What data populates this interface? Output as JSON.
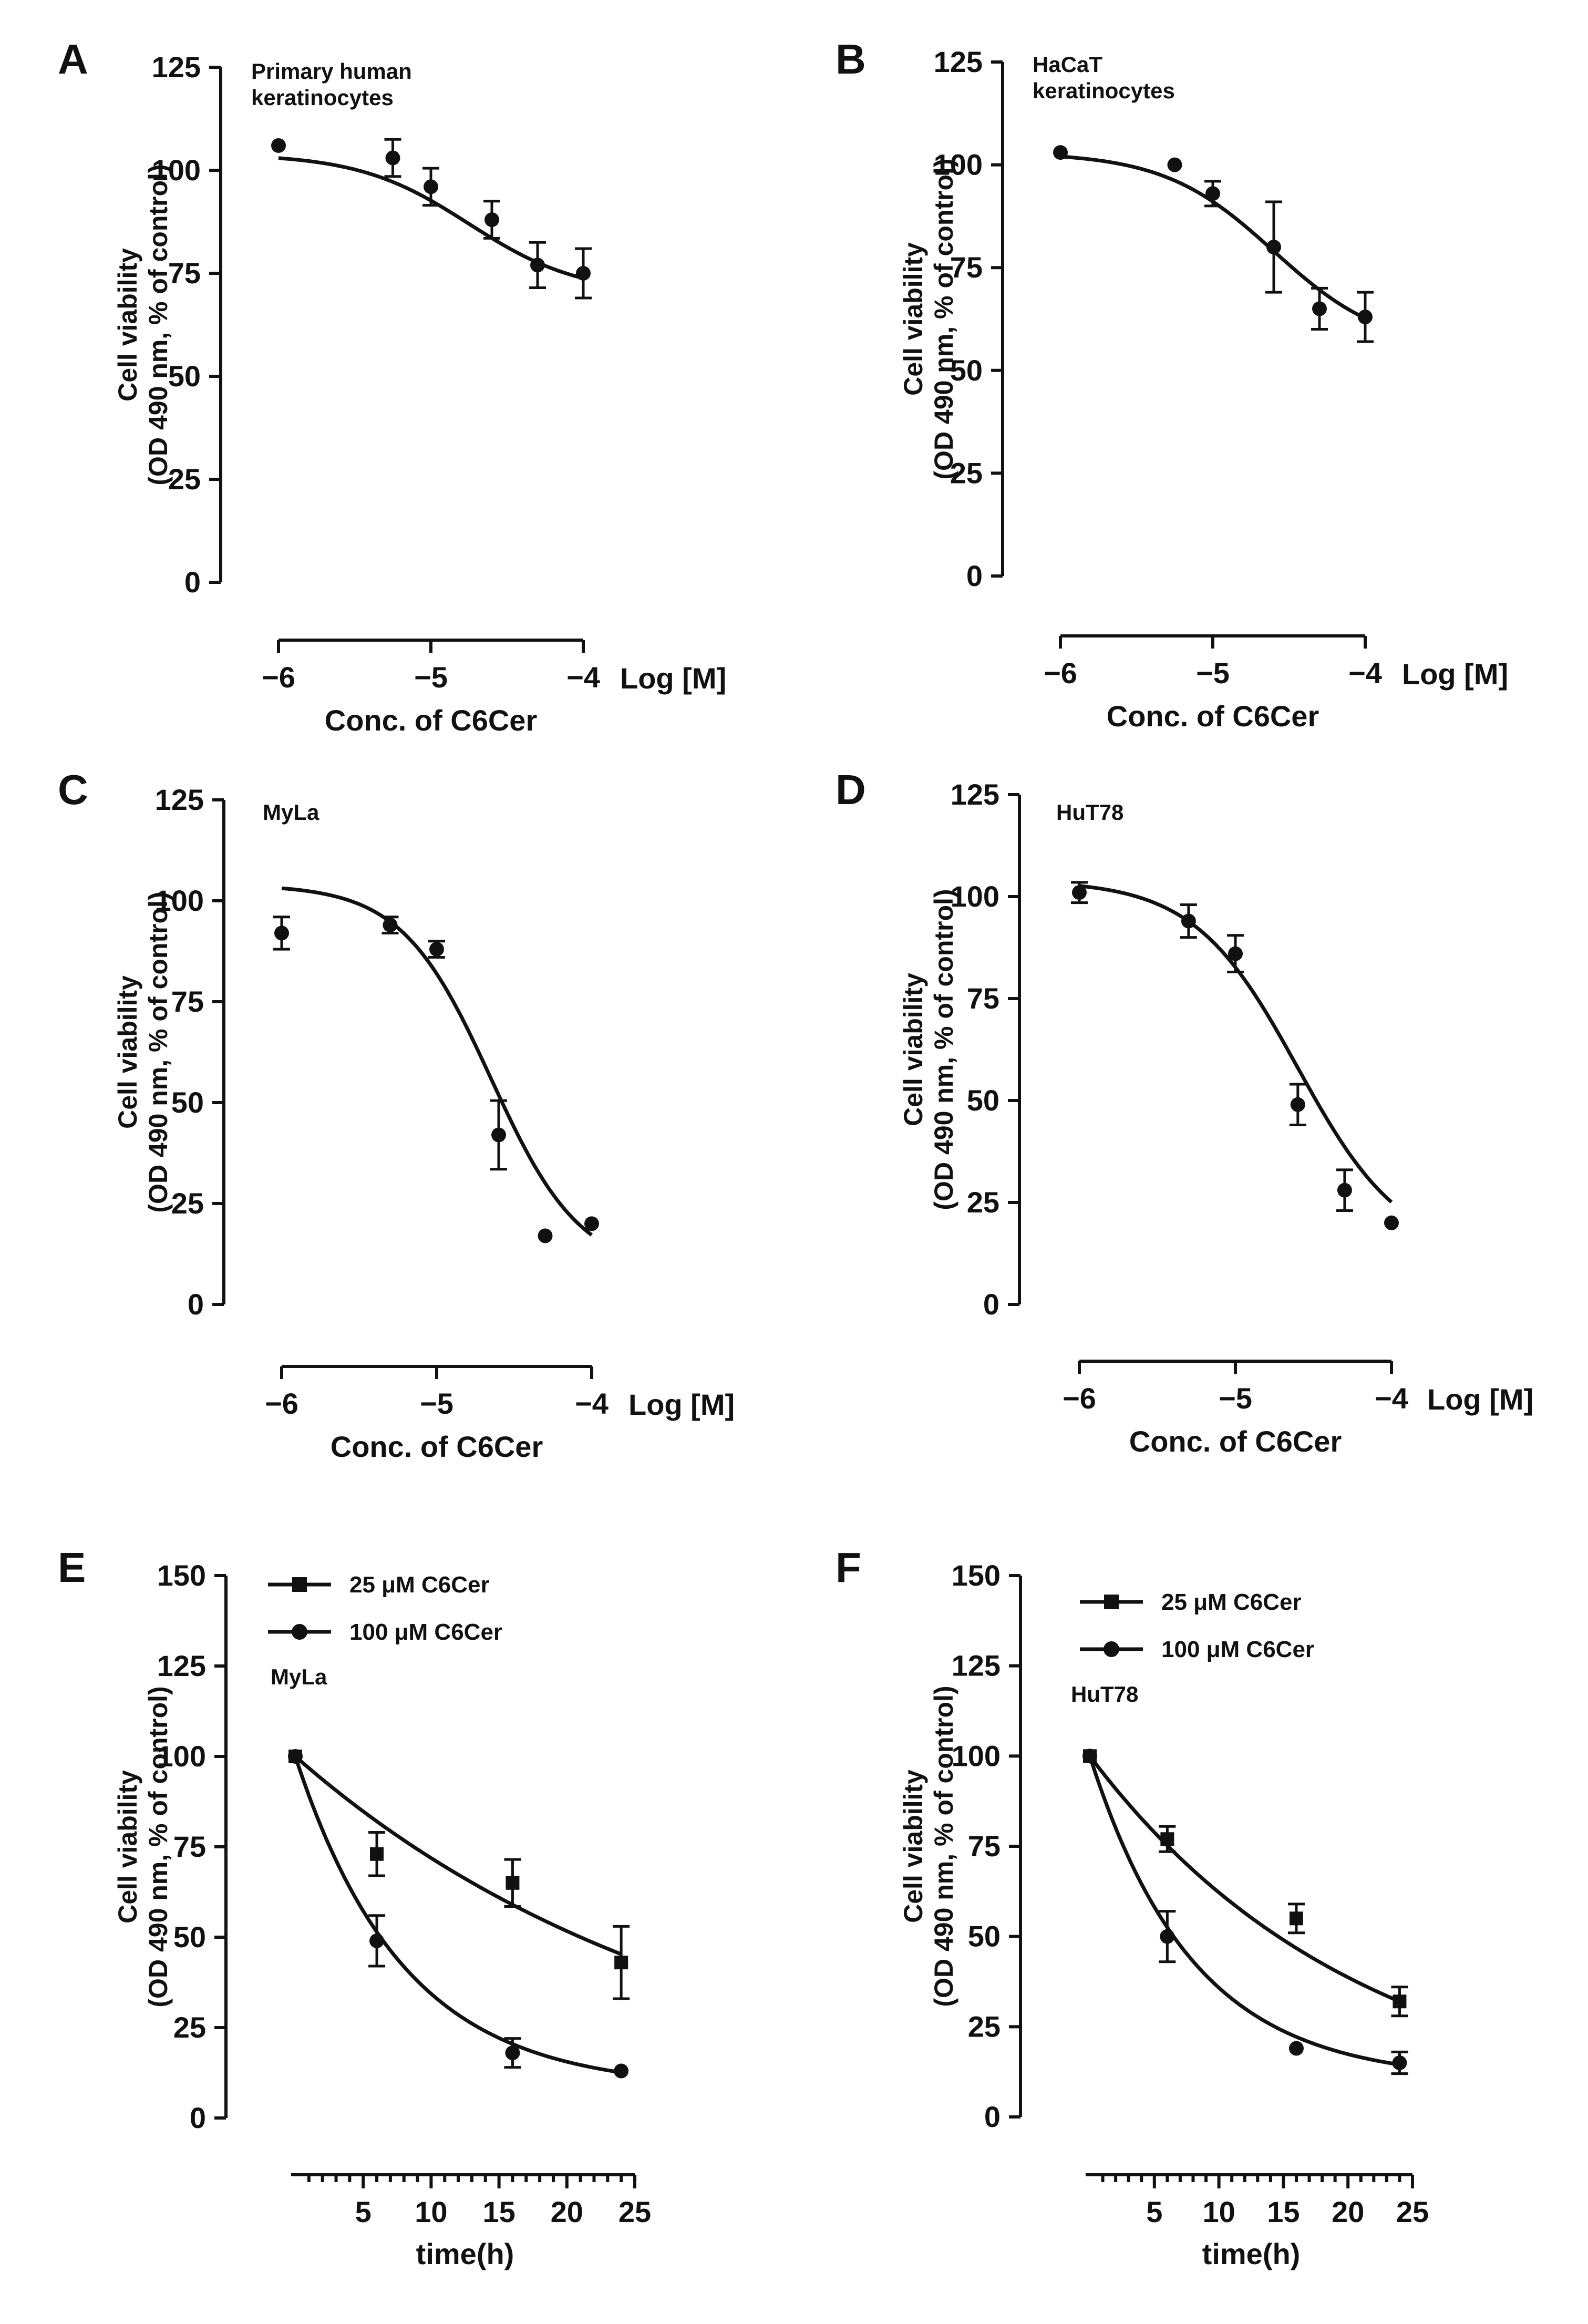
{
  "chart_data": [
    {
      "id": "A",
      "type": "scatter",
      "panel_label": "A",
      "annotation": [
        "Primary human",
        "keratinocytes"
      ],
      "ylabel_lines": [
        "Cell viability",
        "(OD 490 nm, % of control)"
      ],
      "xlabel": "Conc. of C6Cer",
      "x_unit_label": "Log [M]",
      "ylim": [
        0,
        125
      ],
      "yticks": [
        0,
        25,
        50,
        75,
        100,
        125
      ],
      "xlim": [
        -6,
        -4
      ],
      "xticks": [
        -6,
        -5,
        -4
      ],
      "xtick_labels": [
        "−6",
        "−5",
        "−4"
      ],
      "series": [
        {
          "name": "C6Cer",
          "marker": "circle",
          "x": [
            -6,
            -5.25,
            -5,
            -4.6,
            -4.3,
            -4
          ],
          "y": [
            106,
            103,
            96,
            88,
            77,
            75
          ],
          "err": [
            0,
            4.5,
            4.5,
            4.5,
            5.5,
            6
          ],
          "fit": {
            "model": "4pl",
            "top": 104,
            "bottom": 70,
            "log_ic50": -4.75,
            "hill": 1.2,
            "x_range": [
              -6,
              -4
            ]
          }
        }
      ]
    },
    {
      "id": "B",
      "type": "scatter",
      "panel_label": "B",
      "annotation": [
        "HaCaT",
        "keratinocytes"
      ],
      "ylabel_lines": [
        "Cell viability",
        "(OD 490 nm, % of control)"
      ],
      "xlabel": "Conc. of C6Cer",
      "x_unit_label": "Log [M]",
      "ylim": [
        0,
        125
      ],
      "yticks": [
        0,
        25,
        50,
        75,
        100,
        125
      ],
      "xlim": [
        -6,
        -4
      ],
      "xticks": [
        -6,
        -5,
        -4
      ],
      "xtick_labels": [
        "−6",
        "−5",
        "−4"
      ],
      "series": [
        {
          "name": "C6Cer",
          "marker": "circle",
          "x": [
            -6,
            -5.25,
            -5,
            -4.6,
            -4.3,
            -4
          ],
          "y": [
            103,
            100,
            93,
            80,
            65,
            63
          ],
          "err": [
            0,
            0,
            3,
            11,
            5,
            6
          ],
          "fit": {
            "model": "4pl",
            "top": 103,
            "bottom": 55,
            "log_ic50": -4.6,
            "hill": 1.2,
            "x_range": [
              -6,
              -4
            ]
          }
        }
      ]
    },
    {
      "id": "C",
      "type": "scatter",
      "panel_label": "C",
      "annotation": [
        "MyLa"
      ],
      "ylabel_lines": [
        "Cell viability",
        "(OD 490 nm, % of control)"
      ],
      "xlabel": "Conc. of C6Cer",
      "x_unit_label": "Log [M]",
      "ylim": [
        0,
        125
      ],
      "yticks": [
        0,
        25,
        50,
        75,
        100,
        125
      ],
      "xlim": [
        -6,
        -4
      ],
      "xticks": [
        -6,
        -5,
        -4
      ],
      "xtick_labels": [
        "−6",
        "−5",
        "−4"
      ],
      "series": [
        {
          "name": "C6Cer",
          "marker": "circle",
          "x": [
            -6,
            -5.3,
            -5,
            -4.6,
            -4.3,
            -4
          ],
          "y": [
            92,
            94,
            88,
            42,
            17,
            20
          ],
          "err": [
            4,
            2,
            2,
            8.5,
            0,
            0
          ],
          "fit": {
            "model": "4pl",
            "top": 104,
            "bottom": 8,
            "log_ic50": -4.65,
            "hill": 1.5,
            "x_range": [
              -6,
              -4
            ]
          }
        }
      ]
    },
    {
      "id": "D",
      "type": "scatter",
      "panel_label": "D",
      "annotation": [
        "HuT78"
      ],
      "ylabel_lines": [
        "Cell viability",
        "(OD 490 nm, % of control)"
      ],
      "xlabel": "Conc. of C6Cer",
      "x_unit_label": "Log [M]",
      "ylim": [
        0,
        125
      ],
      "yticks": [
        0,
        25,
        50,
        75,
        100,
        125
      ],
      "xlim": [
        -6,
        -4
      ],
      "xticks": [
        -6,
        -5,
        -4
      ],
      "xtick_labels": [
        "−6",
        "−5",
        "−4"
      ],
      "series": [
        {
          "name": "C6Cer",
          "marker": "circle",
          "x": [
            -6,
            -5.3,
            -5,
            -4.6,
            -4.3,
            -4
          ],
          "y": [
            101,
            94,
            86,
            49,
            28,
            20
          ],
          "err": [
            2.5,
            4,
            4.5,
            5,
            5,
            0
          ],
          "fit": {
            "model": "4pl",
            "top": 104,
            "bottom": 12,
            "log_ic50": -4.6,
            "hill": 1.3,
            "x_range": [
              -6,
              -4
            ]
          }
        }
      ]
    },
    {
      "id": "E",
      "type": "line",
      "panel_label": "E",
      "annotation": [
        "MyLa"
      ],
      "ylabel_lines": [
        "Cell viability",
        "(OD 490 nm, % of control)"
      ],
      "xlabel": "time(h)",
      "ylim": [
        0,
        150
      ],
      "yticks": [
        0,
        25,
        50,
        75,
        100,
        125,
        150
      ],
      "xlim": [
        0,
        25
      ],
      "xticks": [
        5,
        10,
        15,
        20,
        25
      ],
      "minor_tick_step": 1,
      "legend": [
        "25 μM C6Cer",
        "100 μM C6Cer"
      ],
      "series": [
        {
          "name": "25 μM C6Cer",
          "marker": "square",
          "x": [
            0,
            6,
            16,
            24
          ],
          "y": [
            100,
            73,
            65,
            43
          ],
          "err": [
            0,
            6,
            6.5,
            10
          ],
          "fit": {
            "model": "exp",
            "y0": 100,
            "plateau": 0,
            "k": 0.033,
            "x_range": [
              0,
              24
            ]
          }
        },
        {
          "name": "100 μM C6Cer",
          "marker": "circle",
          "x": [
            0,
            6,
            16,
            24
          ],
          "y": [
            100,
            49,
            18,
            13
          ],
          "err": [
            0,
            7,
            4,
            0
          ],
          "fit": {
            "model": "exp",
            "y0": 100,
            "plateau": 8,
            "k": 0.125,
            "x_range": [
              0,
              24
            ]
          }
        }
      ]
    },
    {
      "id": "F",
      "type": "line",
      "panel_label": "F",
      "annotation": [
        "HuT78"
      ],
      "ylabel_lines": [
        "Cell viability",
        "(OD 490 nm, % of control)"
      ],
      "xlabel": "time(h)",
      "ylim": [
        0,
        150
      ],
      "yticks": [
        0,
        25,
        50,
        75,
        100,
        125,
        150
      ],
      "xlim": [
        0,
        25
      ],
      "xticks": [
        5,
        10,
        15,
        20,
        25
      ],
      "minor_tick_step": 1,
      "legend": [
        "25 μM C6Cer",
        "100 μM C6Cer"
      ],
      "series": [
        {
          "name": "25 μM C6Cer",
          "marker": "square",
          "x": [
            0,
            6,
            16,
            24
          ],
          "y": [
            100,
            77,
            55,
            32
          ],
          "err": [
            0,
            3.5,
            4,
            4
          ],
          "fit": {
            "model": "exp",
            "y0": 100,
            "plateau": 0,
            "k": 0.0475,
            "x_range": [
              0,
              24
            ]
          }
        },
        {
          "name": "100 μM C6Cer",
          "marker": "circle",
          "x": [
            0,
            6,
            16,
            24
          ],
          "y": [
            100,
            50,
            19,
            15
          ],
          "err": [
            0,
            7,
            0,
            3
          ],
          "fit": {
            "model": "exp",
            "y0": 100,
            "plateau": 10,
            "k": 0.125,
            "x_range": [
              0,
              24
            ]
          }
        }
      ]
    }
  ]
}
